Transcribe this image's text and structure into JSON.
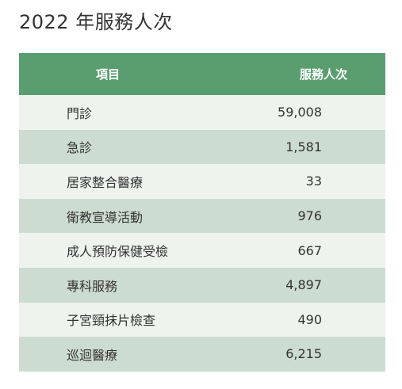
{
  "page_title": "2022 年服務人次",
  "table": {
    "headers": {
      "item": "項目",
      "count": "服務人次"
    },
    "rows": [
      {
        "item": "門診",
        "count": "59,008"
      },
      {
        "item": "急診",
        "count": "1,581"
      },
      {
        "item": "居家整合醫療",
        "count": "33"
      },
      {
        "item": "衛教宣導活動",
        "count": "976"
      },
      {
        "item": "成人預防保健受檢",
        "count": "667"
      },
      {
        "item": "專科服務",
        "count": "4,897"
      },
      {
        "item": "子宮頸抹片檢查",
        "count": "490"
      },
      {
        "item": "巡迴醫療",
        "count": "6,215"
      }
    ]
  },
  "colors": {
    "header_bg": "#5a9e70",
    "row_light": "#eef3ee",
    "row_dark": "#cddcd0"
  }
}
